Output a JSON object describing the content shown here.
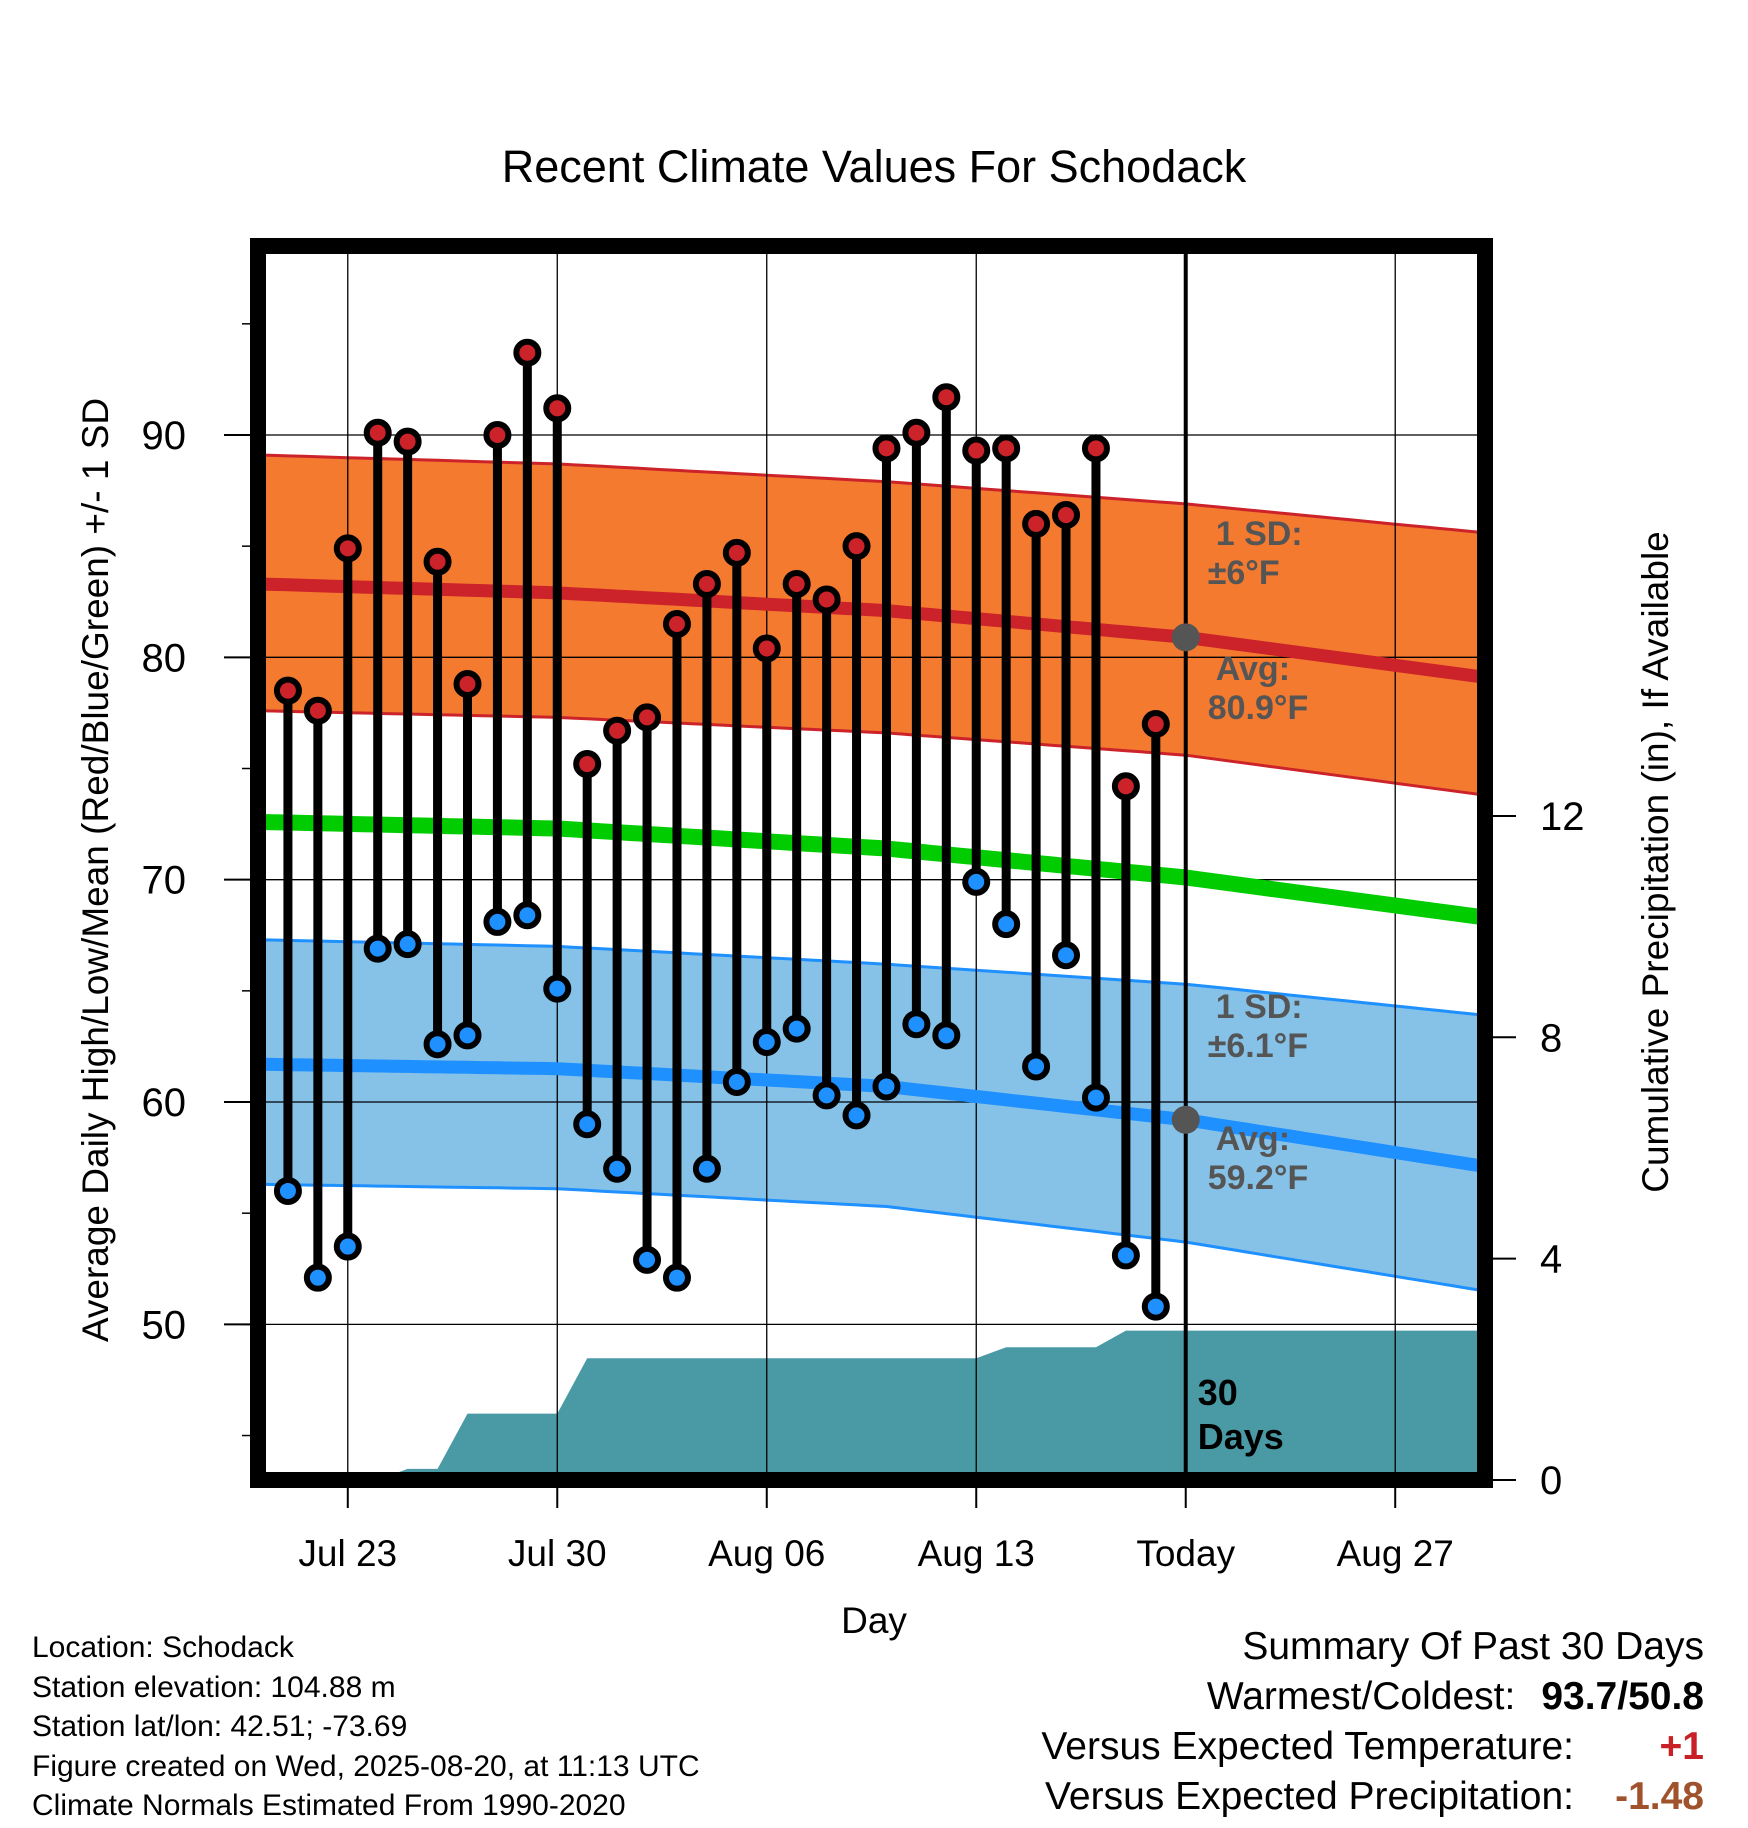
{
  "chart_data": {
    "type": "line",
    "title": "Recent Climate Values For Schodack",
    "xlabel": "Day",
    "ylabel": "Average Daily High/Low/Mean (Red/Blue/Green) +/- 1 SD",
    "y2label": "Cumulative Precipitation (in), If Available",
    "ylim": [
      43,
      98.5
    ],
    "y2lim": [
      0,
      22.3
    ],
    "yticks": [
      "50",
      "60",
      "70",
      "80",
      "90"
    ],
    "y2ticks": [
      "0",
      "4",
      "8",
      "12"
    ],
    "xticks": [
      "Jul 23",
      "Jul 30",
      "Aug 06",
      "Aug 13",
      "Today",
      "Aug 27"
    ],
    "x_range": [
      "Jul 20",
      "Aug 30"
    ],
    "grid": true,
    "today": "Aug 20",
    "dates": [
      "Jul 21",
      "Jul 22",
      "Jul 23",
      "Jul 24",
      "Jul 25",
      "Jul 26",
      "Jul 27",
      "Jul 28",
      "Jul 29",
      "Jul 30",
      "Jul 31",
      "Aug 01",
      "Aug 02",
      "Aug 03",
      "Aug 04",
      "Aug 05",
      "Aug 06",
      "Aug 07",
      "Aug 08",
      "Aug 09",
      "Aug 10",
      "Aug 11",
      "Aug 12",
      "Aug 13",
      "Aug 14",
      "Aug 15",
      "Aug 16",
      "Aug 17",
      "Aug 18",
      "Aug 19"
    ],
    "series": [
      {
        "name": "High",
        "color": "#cc2229",
        "values": [
          78.5,
          77.6,
          84.9,
          90.1,
          89.7,
          84.3,
          78.8,
          90.0,
          93.7,
          91.2,
          75.2,
          76.7,
          77.3,
          81.5,
          83.3,
          84.7,
          80.4,
          83.3,
          82.6,
          85.0,
          89.4,
          90.1,
          91.7,
          89.3,
          89.4,
          86.0,
          86.4,
          89.4,
          74.2,
          77.0
        ]
      },
      {
        "name": "Low",
        "color": "#1e90ff",
        "values": [
          56.0,
          52.1,
          53.5,
          66.9,
          67.1,
          62.6,
          63.0,
          68.1,
          68.4,
          65.1,
          59.0,
          57.0,
          52.9,
          52.1,
          57.0,
          60.9,
          62.7,
          63.3,
          60.3,
          59.4,
          60.7,
          63.5,
          63.0,
          69.9,
          68.0,
          61.6,
          66.6,
          60.2,
          53.1,
          50.8
        ]
      },
      {
        "name": "Cumulative Precipitation",
        "color": "#4a9aa5",
        "points": [
          [
            "Jul 20",
            0
          ],
          [
            "Jul 24",
            0
          ],
          [
            "Jul 25",
            0.2
          ],
          [
            "Jul 26",
            0.2
          ],
          [
            "Jul 27",
            1.2
          ],
          [
            "Jul 30",
            1.2
          ],
          [
            "Jul 31",
            2.2
          ],
          [
            "Aug 13",
            2.2
          ],
          [
            "Aug 14",
            2.4
          ],
          [
            "Aug 17",
            2.4
          ],
          [
            "Aug 18",
            2.7
          ],
          [
            "Aug 30",
            2.7
          ]
        ]
      }
    ],
    "normals": {
      "dates": [
        "Jul 20",
        "Jul 30",
        "Aug 10",
        "Aug 20",
        "Aug 30"
      ],
      "high_mean": [
        83.3,
        82.9,
        82.1,
        80.9,
        79.1
      ],
      "high_upper": [
        89.1,
        88.7,
        87.9,
        86.9,
        85.6
      ],
      "high_lower": [
        77.6,
        77.3,
        76.6,
        75.6,
        73.8
      ],
      "low_mean": [
        61.7,
        61.5,
        60.7,
        59.2,
        57.1
      ],
      "low_upper": [
        67.3,
        67.0,
        66.2,
        65.3,
        63.9
      ],
      "low_lower": [
        56.3,
        56.1,
        55.3,
        53.7,
        51.5
      ],
      "mean": [
        72.6,
        72.3,
        71.4,
        70.1,
        68.3
      ]
    },
    "annotations": {
      "high_sd": [
        "1 SD:",
        "±6°F"
      ],
      "high_avg": [
        "Avg:",
        "80.9°F"
      ],
      "low_sd": [
        "1 SD:",
        "±6.1°F"
      ],
      "low_avg": [
        "Avg:",
        "59.2°F"
      ],
      "days": [
        "30",
        "Days"
      ]
    },
    "colors": {
      "high_band": "#f47a30",
      "low_band": "#86c2e8",
      "mean_line": "#00cc00",
      "annotation": "#555555"
    }
  },
  "info": {
    "location": "Location: Schodack",
    "elevation": "Station elevation: 104.88 m",
    "latlon": "Station lat/lon: 42.51; -73.69",
    "created": "Figure created on Wed, 2025-08-20, at 11:13 UTC",
    "normals": "Climate Normals Estimated From 1990-2020"
  },
  "summary": {
    "title": "Summary Of Past 30 Days",
    "warm_cold_label": "Warmest/Coldest:",
    "warm_cold_value": "93.7/50.8",
    "temp_label": "Versus Expected Temperature:",
    "temp_value": "+1",
    "precip_label": "Versus Expected Precipitation:",
    "precip_value": "-1.48"
  }
}
